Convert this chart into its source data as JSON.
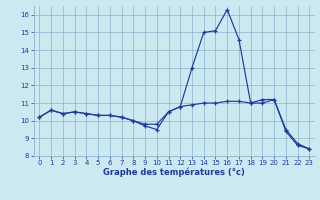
{
  "x_hours": [
    0,
    1,
    2,
    3,
    4,
    5,
    6,
    7,
    8,
    9,
    10,
    11,
    12,
    13,
    14,
    15,
    16,
    17,
    18,
    19,
    20,
    21,
    22,
    23
  ],
  "temp_line1": [
    10.2,
    10.6,
    10.4,
    10.5,
    10.4,
    10.3,
    10.3,
    10.2,
    10.0,
    9.7,
    9.5,
    10.5,
    10.8,
    13.0,
    15.0,
    15.1,
    16.3,
    14.6,
    11.0,
    11.0,
    11.2,
    9.5,
    8.7,
    8.4
  ],
  "temp_line2": [
    10.2,
    10.6,
    10.4,
    10.5,
    10.4,
    10.3,
    10.3,
    10.2,
    10.0,
    9.8,
    9.8,
    10.5,
    10.8,
    10.9,
    11.0,
    11.0,
    11.1,
    11.1,
    11.0,
    11.2,
    11.2,
    9.4,
    8.6,
    8.4
  ],
  "line_color": "#1e3a9f",
  "bg_color": "#cce8f0",
  "grid_color": "#8ab4cc",
  "xlabel": "Graphe des températures (°c)",
  "xlim": [
    -0.5,
    23.5
  ],
  "ylim": [
    8,
    16.5
  ],
  "yticks": [
    8,
    9,
    10,
    11,
    12,
    13,
    14,
    15,
    16
  ],
  "xticks": [
    0,
    1,
    2,
    3,
    4,
    5,
    6,
    7,
    8,
    9,
    10,
    11,
    12,
    13,
    14,
    15,
    16,
    17,
    18,
    19,
    20,
    21,
    22,
    23
  ]
}
